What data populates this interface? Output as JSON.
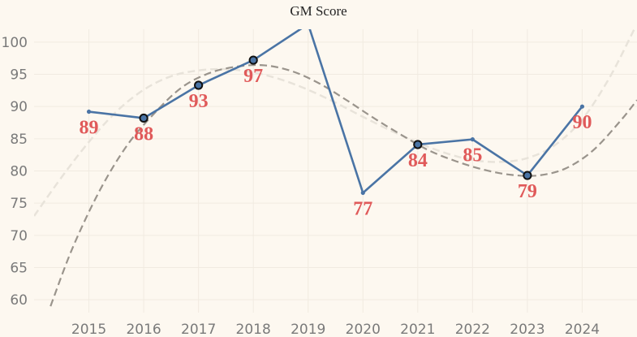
{
  "chart_data": {
    "type": "line",
    "title": "GM Score",
    "xlabel": "",
    "ylabel": "",
    "x": [
      2015,
      2016,
      2017,
      2018,
      2019,
      2020,
      2021,
      2022,
      2023,
      2024
    ],
    "series": [
      {
        "values": [
          89.2,
          88.2,
          93.3,
          97.2,
          102.8,
          76.6,
          84.1,
          84.9,
          79.3,
          90.0
        ]
      }
    ],
    "data_labels": [
      {
        "x": 2015,
        "text": "89"
      },
      {
        "x": 2016,
        "text": "88"
      },
      {
        "x": 2017,
        "text": "93"
      },
      {
        "x": 2018,
        "text": "97"
      },
      {
        "x": 2020,
        "text": "77"
      },
      {
        "x": 2021,
        "text": "84"
      },
      {
        "x": 2022,
        "text": "85"
      },
      {
        "x": 2023,
        "text": "79"
      },
      {
        "x": 2024,
        "text": "90"
      }
    ],
    "highlighted_points_x": [
      2016,
      2017,
      2018,
      2021,
      2023
    ],
    "trend_dark": [
      {
        "x": 2014.3,
        "y": 59
      },
      {
        "x": 2014.7,
        "y": 68
      },
      {
        "x": 2015.2,
        "y": 77
      },
      {
        "x": 2015.7,
        "y": 84
      },
      {
        "x": 2016.2,
        "y": 89
      },
      {
        "x": 2016.7,
        "y": 93
      },
      {
        "x": 2017.2,
        "y": 95.2
      },
      {
        "x": 2017.7,
        "y": 96.2
      },
      {
        "x": 2018.2,
        "y": 96.4
      },
      {
        "x": 2018.7,
        "y": 95.5
      },
      {
        "x": 2019.2,
        "y": 93.6
      },
      {
        "x": 2019.7,
        "y": 91
      },
      {
        "x": 2020.2,
        "y": 88.2
      },
      {
        "x": 2020.7,
        "y": 85.6
      },
      {
        "x": 2021.2,
        "y": 83.2
      },
      {
        "x": 2021.7,
        "y": 81.5
      },
      {
        "x": 2022.2,
        "y": 80.2
      },
      {
        "x": 2022.7,
        "y": 79.4
      },
      {
        "x": 2023.2,
        "y": 79.3
      },
      {
        "x": 2023.7,
        "y": 80.4
      },
      {
        "x": 2024.2,
        "y": 83.2
      },
      {
        "x": 2024.7,
        "y": 87.8
      },
      {
        "x": 2025.0,
        "y": 91
      }
    ],
    "trend_light": [
      {
        "x": 2014.0,
        "y": 73
      },
      {
        "x": 2014.5,
        "y": 79
      },
      {
        "x": 2015.0,
        "y": 84.5
      },
      {
        "x": 2015.5,
        "y": 89.2
      },
      {
        "x": 2016.0,
        "y": 92.6
      },
      {
        "x": 2016.5,
        "y": 94.7
      },
      {
        "x": 2017.0,
        "y": 95.6
      },
      {
        "x": 2017.5,
        "y": 95.8
      },
      {
        "x": 2018.0,
        "y": 95.3
      },
      {
        "x": 2018.5,
        "y": 94.2
      },
      {
        "x": 2019.0,
        "y": 92.6
      },
      {
        "x": 2019.5,
        "y": 90.6
      },
      {
        "x": 2020.0,
        "y": 88.4
      },
      {
        "x": 2020.5,
        "y": 86.3
      },
      {
        "x": 2021.0,
        "y": 84.4
      },
      {
        "x": 2021.5,
        "y": 82.8
      },
      {
        "x": 2022.0,
        "y": 81.7
      },
      {
        "x": 2022.5,
        "y": 81.4
      },
      {
        "x": 2023.0,
        "y": 82.0
      },
      {
        "x": 2023.5,
        "y": 84.0
      },
      {
        "x": 2024.0,
        "y": 88.0
      },
      {
        "x": 2024.5,
        "y": 94.5
      },
      {
        "x": 2024.95,
        "y": 102
      }
    ],
    "ylim": [
      58,
      102
    ],
    "xlim": [
      2014,
      2025
    ],
    "yticks": [
      60,
      65,
      70,
      75,
      80,
      85,
      90,
      95,
      100
    ],
    "grid": true,
    "colors": {
      "line": "#4a74a5",
      "label": "#e05a5a",
      "trend_dark": "#9a948c",
      "trend_light": "#e8e3da",
      "marker_fill": "#4a74a5",
      "marker_stroke": "#111111",
      "background": "#fdf8f0",
      "grid": "#f1ebe1"
    }
  }
}
